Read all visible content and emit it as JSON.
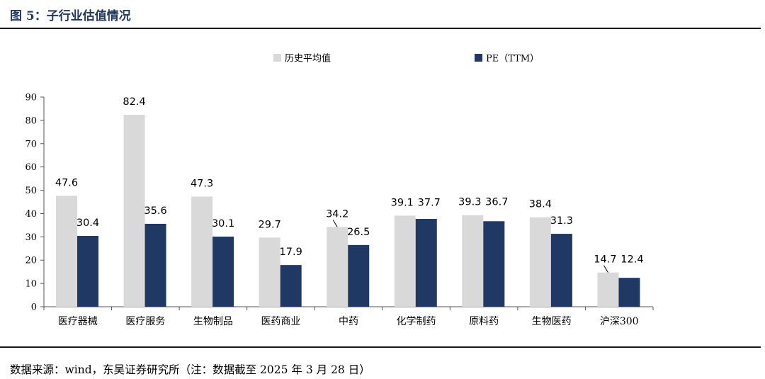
{
  "header": {
    "title": "图 5：子行业估值情况"
  },
  "footer": {
    "source": "数据来源：wind，东吴证券研究所（注：数据截至 2025 年 3 月 28 日）"
  },
  "colors": {
    "historical_avg": "#d9d9d9",
    "pe_ttm": "#1f3864",
    "title": "#1f3864"
  },
  "chart_data": {
    "type": "bar",
    "categories": [
      "医疗器械",
      "医疗服务",
      "生物制品",
      "医药商业",
      "中药",
      "化学制药",
      "原料药",
      "生物医药",
      "沪深300"
    ],
    "series": [
      {
        "name": "历史平均值",
        "values": [
          47.6,
          82.4,
          47.3,
          29.7,
          34.2,
          39.1,
          39.3,
          38.4,
          14.7
        ]
      },
      {
        "name": "PE（TTM）",
        "values": [
          30.4,
          35.6,
          30.1,
          17.9,
          26.5,
          37.7,
          36.7,
          31.3,
          12.4
        ]
      }
    ],
    "ylim": [
      0,
      90
    ],
    "yticks": [
      0,
      10,
      20,
      30,
      40,
      50,
      60,
      70,
      80,
      90
    ],
    "legend": "top-center",
    "grid": false,
    "data_labels": true
  }
}
